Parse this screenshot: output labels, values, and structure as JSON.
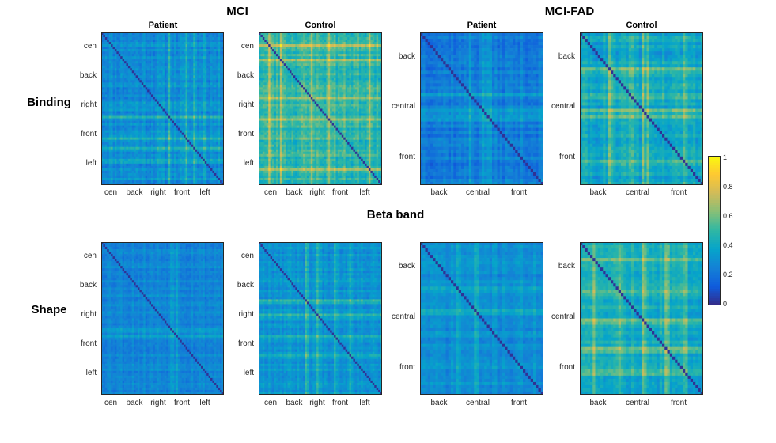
{
  "chart_data": {
    "type": "heatmap",
    "band_title": "Beta band",
    "groups": [
      {
        "id": "mci",
        "title": "MCI"
      },
      {
        "id": "fad",
        "title": "MCI-FAD"
      }
    ],
    "rows": [
      {
        "id": "binding",
        "title": "Binding"
      },
      {
        "id": "shape",
        "title": "Shape"
      }
    ],
    "mci_regions": [
      "cen",
      "back",
      "right",
      "front",
      "left"
    ],
    "fad_regions": [
      "back",
      "central",
      "front"
    ],
    "panels": [
      {
        "id": "mci-binding-patient",
        "group": "mci",
        "row": "binding",
        "title": "Patient",
        "size": 64,
        "mean": 0.3,
        "spread": 0.18,
        "stripes": [
          0.55,
          0.7,
          0.76,
          0.83
        ],
        "seed": 11
      },
      {
        "id": "mci-binding-control",
        "group": "mci",
        "row": "binding",
        "title": "Control",
        "size": 64,
        "mean": 0.5,
        "spread": 0.22,
        "stripes": [
          0.08,
          0.18,
          0.43,
          0.57,
          0.9
        ],
        "seed": 23
      },
      {
        "id": "fad-binding-patient",
        "group": "fad",
        "row": "binding",
        "title": "Patient",
        "size": 48,
        "mean": 0.24,
        "spread": 0.16,
        "stripes": [
          0.41,
          0.52,
          0.56
        ],
        "seed": 37
      },
      {
        "id": "fad-binding-control",
        "group": "fad",
        "row": "binding",
        "title": "Control",
        "size": 48,
        "mean": 0.38,
        "spread": 0.2,
        "stripes": [
          0.23,
          0.41,
          0.52,
          0.56,
          0.84
        ],
        "seed": 41
      },
      {
        "id": "mci-shape-patient",
        "group": "mci",
        "row": "shape",
        "title": "Patient",
        "size": 64,
        "mean": 0.28,
        "spread": 0.14,
        "stripes": [
          0.57,
          0.62
        ],
        "seed": 53
      },
      {
        "id": "mci-shape-control",
        "group": "mci",
        "row": "shape",
        "title": "Control",
        "size": 64,
        "mean": 0.34,
        "spread": 0.16,
        "stripes": [
          0.38,
          0.47,
          0.61,
          0.74
        ],
        "seed": 67
      },
      {
        "id": "fad-shape-patient",
        "group": "fad",
        "row": "shape",
        "title": "Patient",
        "size": 48,
        "mean": 0.3,
        "spread": 0.14,
        "stripes": [
          0.3,
          0.45
        ],
        "seed": 71
      },
      {
        "id": "fad-shape-control",
        "group": "fad",
        "row": "shape",
        "title": "Control",
        "size": 48,
        "mean": 0.42,
        "spread": 0.18,
        "stripes": [
          0.12,
          0.32,
          0.52,
          0.7,
          0.85
        ],
        "seed": 83
      }
    ],
    "colorbar": {
      "range": [
        0,
        1
      ],
      "ticks": [
        "0",
        "0.2",
        "0.4",
        "0.6",
        "0.8",
        "1"
      ],
      "colormap": "parula",
      "colors": [
        "#352a87",
        "#0f5cdd",
        "#1481d6",
        "#06a4ca",
        "#2eb7a4",
        "#87bf77",
        "#d1bb59",
        "#fec832",
        "#f9fb0e"
      ]
    }
  }
}
